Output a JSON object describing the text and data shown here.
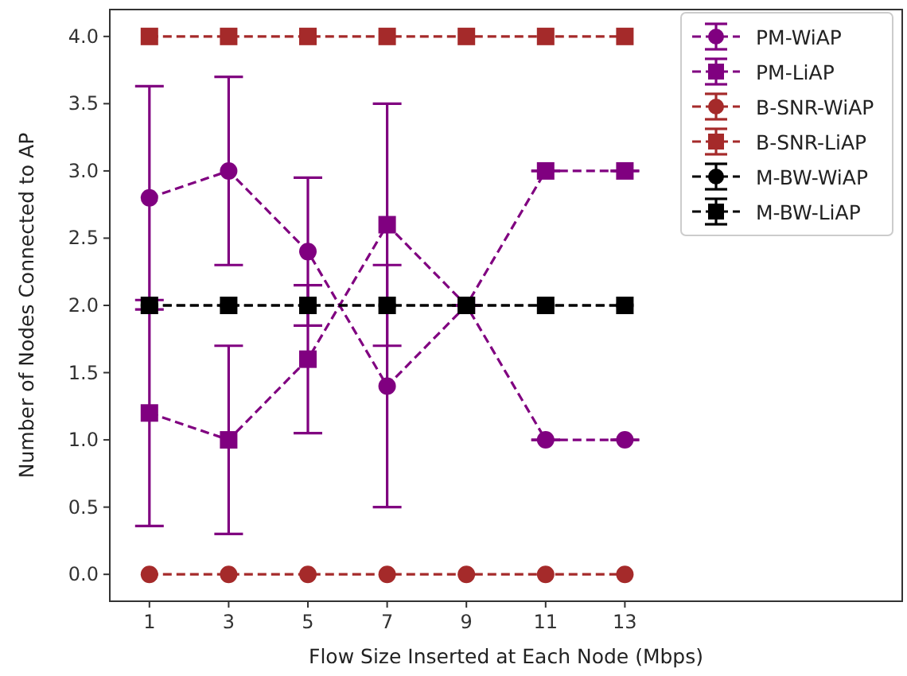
{
  "chart_data": {
    "type": "line",
    "xlabel": "Flow Size Inserted at Each Node (Mbps)",
    "ylabel": "Number of Nodes Connected to AP",
    "x": [
      1,
      3,
      5,
      7,
      9,
      11,
      13
    ],
    "xlim": [
      0,
      20
    ],
    "xticks": [
      1,
      3,
      5,
      7,
      9,
      11,
      13
    ],
    "ylim": [
      -0.2,
      4.2
    ],
    "yticks": [
      {
        "value": 0,
        "label": "0.0"
      },
      {
        "value": 0.5,
        "label": "0.5"
      },
      {
        "value": 1,
        "label": "1.0"
      },
      {
        "value": 1.5,
        "label": "1.5"
      },
      {
        "value": 2,
        "label": "2.0"
      },
      {
        "value": 2.5,
        "label": "2.5"
      },
      {
        "value": 3,
        "label": "3.0"
      },
      {
        "value": 3.5,
        "label": "3.5"
      },
      {
        "value": 4,
        "label": "4.0"
      }
    ],
    "line_style": "dashed",
    "legend": "top right",
    "grid": false,
    "series": [
      {
        "name": "PM-WiAP",
        "color": "#800080",
        "marker": "circle",
        "values": [
          2.8,
          3.0,
          2.4,
          1.4,
          2.0,
          1.0,
          1.0
        ],
        "errors": [
          0.83,
          0.7,
          0.55,
          0.9,
          0,
          0,
          0
        ]
      },
      {
        "name": "PM-LiAP",
        "color": "#800080",
        "marker": "square",
        "values": [
          1.2,
          1.0,
          1.6,
          2.6,
          2.0,
          3.0,
          3.0
        ],
        "errors": [
          0.84,
          0.7,
          0.55,
          0.9,
          0,
          0,
          0
        ]
      },
      {
        "name": "B-SNR-WiAP",
        "color": "#a52a2a",
        "marker": "circle",
        "values": [
          0,
          0,
          0,
          0,
          0,
          0,
          0
        ]
      },
      {
        "name": "B-SNR-LiAP",
        "color": "#a52a2a",
        "marker": "square",
        "values": [
          4,
          4,
          4,
          4,
          4,
          4,
          4
        ]
      },
      {
        "name": "M-BW-WiAP",
        "color": "#000000",
        "marker": "circle",
        "values": [
          2,
          2,
          2,
          2,
          2,
          2,
          2
        ]
      },
      {
        "name": "M-BW-LiAP",
        "color": "#000000",
        "marker": "square",
        "values": [
          2,
          2,
          2,
          2,
          2,
          2,
          2
        ]
      }
    ]
  }
}
